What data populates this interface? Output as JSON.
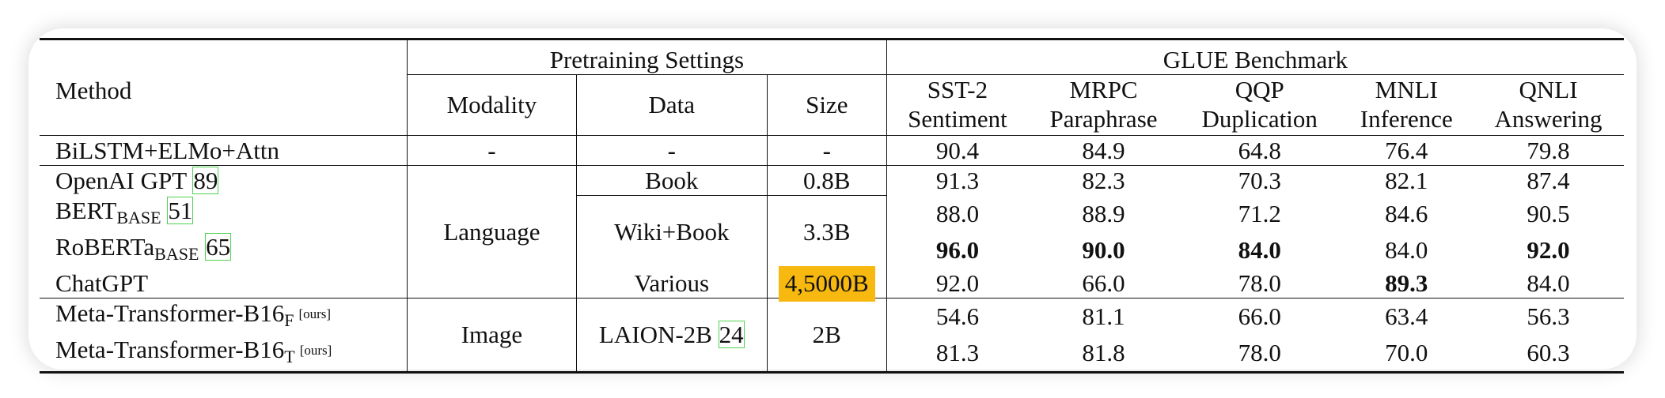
{
  "header": {
    "method": "Method",
    "pretraining_settings": "Pretraining Settings",
    "glue_benchmark": "GLUE Benchmark",
    "modality": "Modality",
    "data": "Data",
    "size": "Size",
    "tasks": [
      {
        "name": "SST-2",
        "desc": "Sentiment"
      },
      {
        "name": "MRPC",
        "desc": "Paraphrase"
      },
      {
        "name": "QQP",
        "desc": "Duplication"
      },
      {
        "name": "MNLI",
        "desc": "Inference"
      },
      {
        "name": "QNLI",
        "desc": "Answering"
      }
    ]
  },
  "rows": [
    {
      "method": "BiLSTM+ELMo+Attn",
      "modality": "-",
      "data": "-",
      "size": "-",
      "scores": [
        "90.4",
        "84.9",
        "64.8",
        "76.4",
        "79.8"
      ]
    },
    {
      "method": "OpenAI GPT",
      "cite": "89",
      "scores": [
        "91.3",
        "82.3",
        "70.3",
        "82.1",
        "87.4"
      ]
    },
    {
      "method": "BERT",
      "method_sub": "BASE",
      "cite": "51",
      "scores": [
        "88.0",
        "88.9",
        "71.2",
        "84.6",
        "90.5"
      ]
    },
    {
      "method": "RoBERTa",
      "method_sub": "BASE",
      "cite": "65",
      "scores": [
        "96.0",
        "90.0",
        "84.0",
        "84.0",
        "92.0"
      ]
    },
    {
      "method": "ChatGPT",
      "scores": [
        "92.0",
        "66.0",
        "78.0",
        "89.3",
        "84.0"
      ]
    },
    {
      "method": "Meta-Transformer-B16",
      "method_sub": "F",
      "tag": "[ours]",
      "scores": [
        "54.6",
        "81.1",
        "66.0",
        "63.4",
        "56.3"
      ]
    },
    {
      "method": "Meta-Transformer-B16",
      "method_sub": "T",
      "tag": "[ours]",
      "scores": [
        "81.3",
        "81.8",
        "78.0",
        "70.0",
        "60.3"
      ]
    }
  ],
  "groups": {
    "language": {
      "modality": "Language",
      "data": [
        "Book",
        "Wiki+Book",
        "Various"
      ],
      "size": [
        "0.8B",
        "3.3B",
        "4,5000B"
      ]
    },
    "image": {
      "modality": "Image",
      "data": "LAION-2B",
      "data_cite": "24",
      "size": "2B"
    }
  },
  "highlight_color": "#f7b80f",
  "citation_box_color": "#4fd34f"
}
